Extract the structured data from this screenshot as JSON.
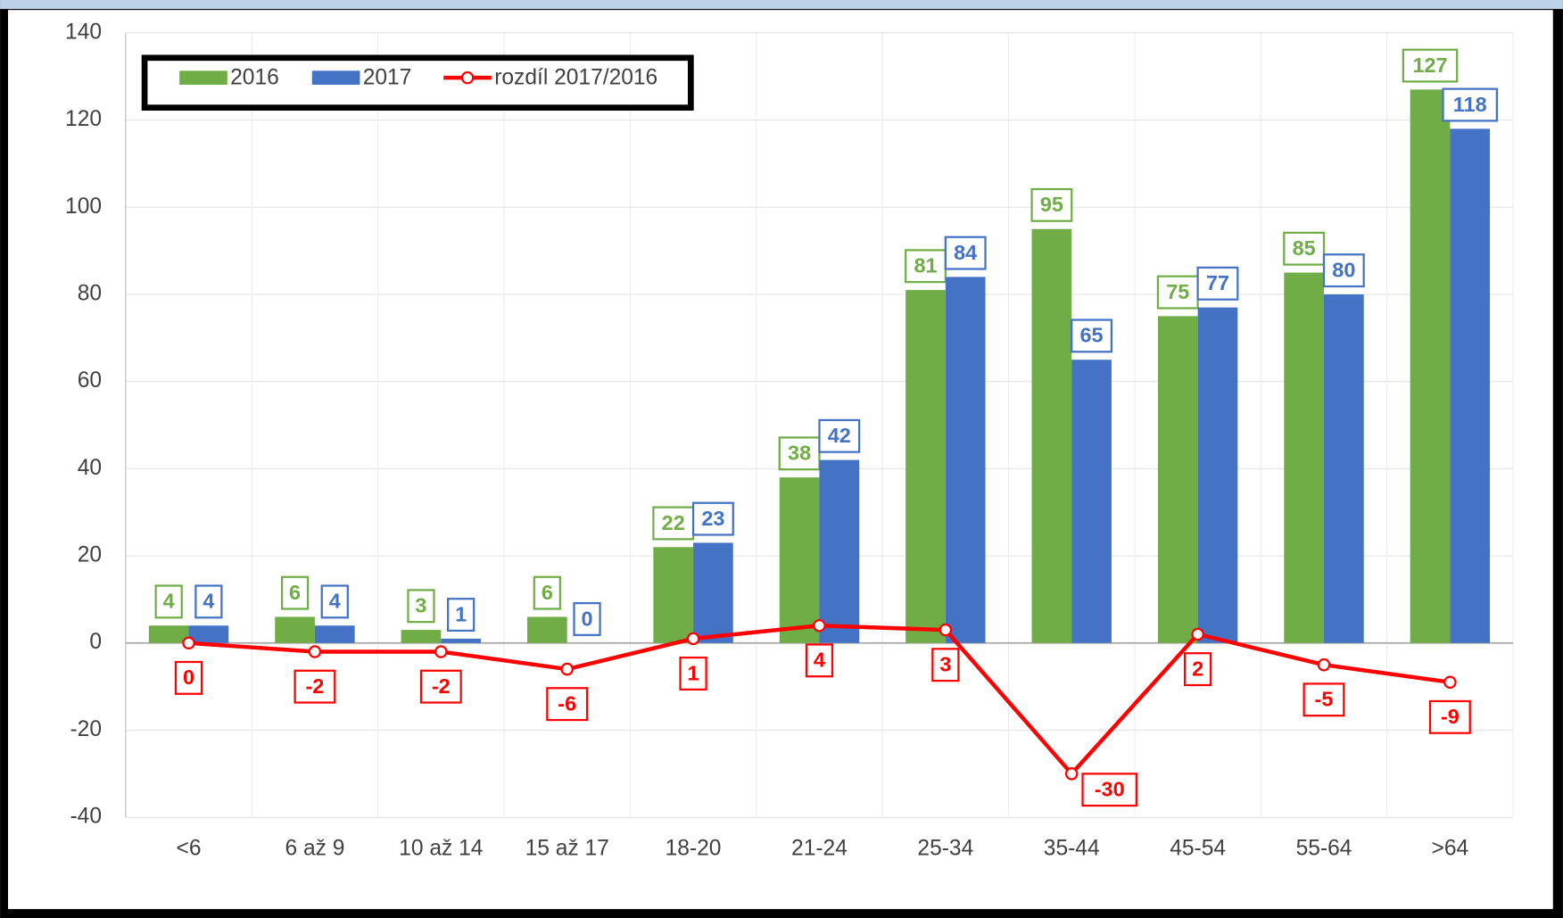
{
  "chart_data": {
    "type": "bar",
    "categories": [
      "<6",
      "6 až 9",
      "10 až 14",
      "15 až 17",
      "18-20",
      "21-24",
      "25-34",
      "35-44",
      "45-54",
      "55-64",
      ">64"
    ],
    "series": [
      {
        "name": "2016",
        "type": "bar",
        "color": "#70ad47",
        "values": [
          4,
          6,
          3,
          6,
          22,
          38,
          81,
          95,
          75,
          85,
          127
        ]
      },
      {
        "name": "2017",
        "type": "bar",
        "color": "#4472c4",
        "values": [
          4,
          4,
          1,
          0,
          23,
          42,
          84,
          65,
          77,
          80,
          118
        ]
      },
      {
        "name": "rozdíl 2017/2016",
        "type": "line",
        "color": "#ff0000",
        "values": [
          0,
          -2,
          -2,
          -6,
          1,
          4,
          3,
          -30,
          2,
          -5,
          -9
        ]
      }
    ],
    "ylim": [
      -40,
      140
    ],
    "yticks": [
      -40,
      -20,
      0,
      20,
      40,
      60,
      80,
      100,
      120,
      140
    ],
    "grid": true,
    "legend": "top-left",
    "data_labels": true
  }
}
